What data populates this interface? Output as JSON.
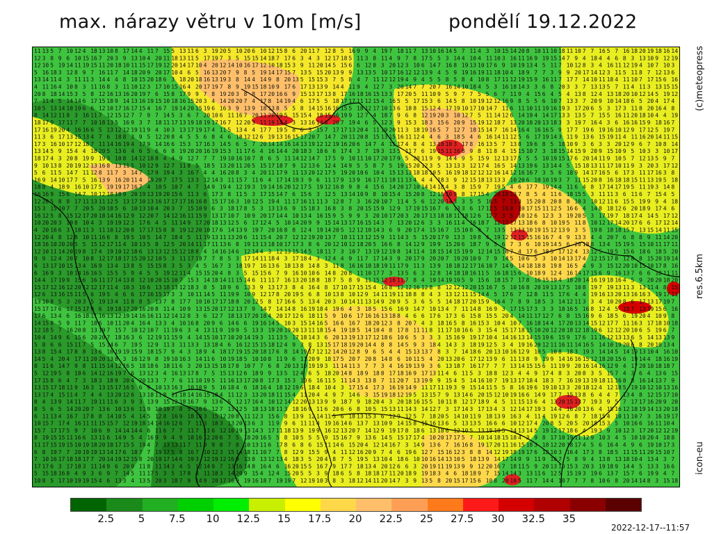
{
  "header": {
    "title": "max. nárazy větru v 10m [m/s]",
    "date": "pondělí 19.12.2022"
  },
  "side": {
    "copyright": "(c)meteopress",
    "resolution": "res.6.5km",
    "model": "icon-eu"
  },
  "legend": {
    "colors": [
      "#006400",
      "#1a8a1a",
      "#22b022",
      "#00d000",
      "#00ee00",
      "#c8ee00",
      "#ffff00",
      "#ffd84a",
      "#ffbf6a",
      "#ff9f55",
      "#ff7a1a",
      "#ff1a1a",
      "#d40000",
      "#b00000",
      "#8a0000",
      "#5a0000"
    ],
    "tick_labels": [
      "2.5",
      "5",
      "7.5",
      "10",
      "12.5",
      "15",
      "17.5",
      "20",
      "22.5",
      "25",
      "27.5",
      "30",
      "32.5",
      "35"
    ]
  },
  "footer": {
    "timestamp": "2022-12-17--11:57"
  }
}
